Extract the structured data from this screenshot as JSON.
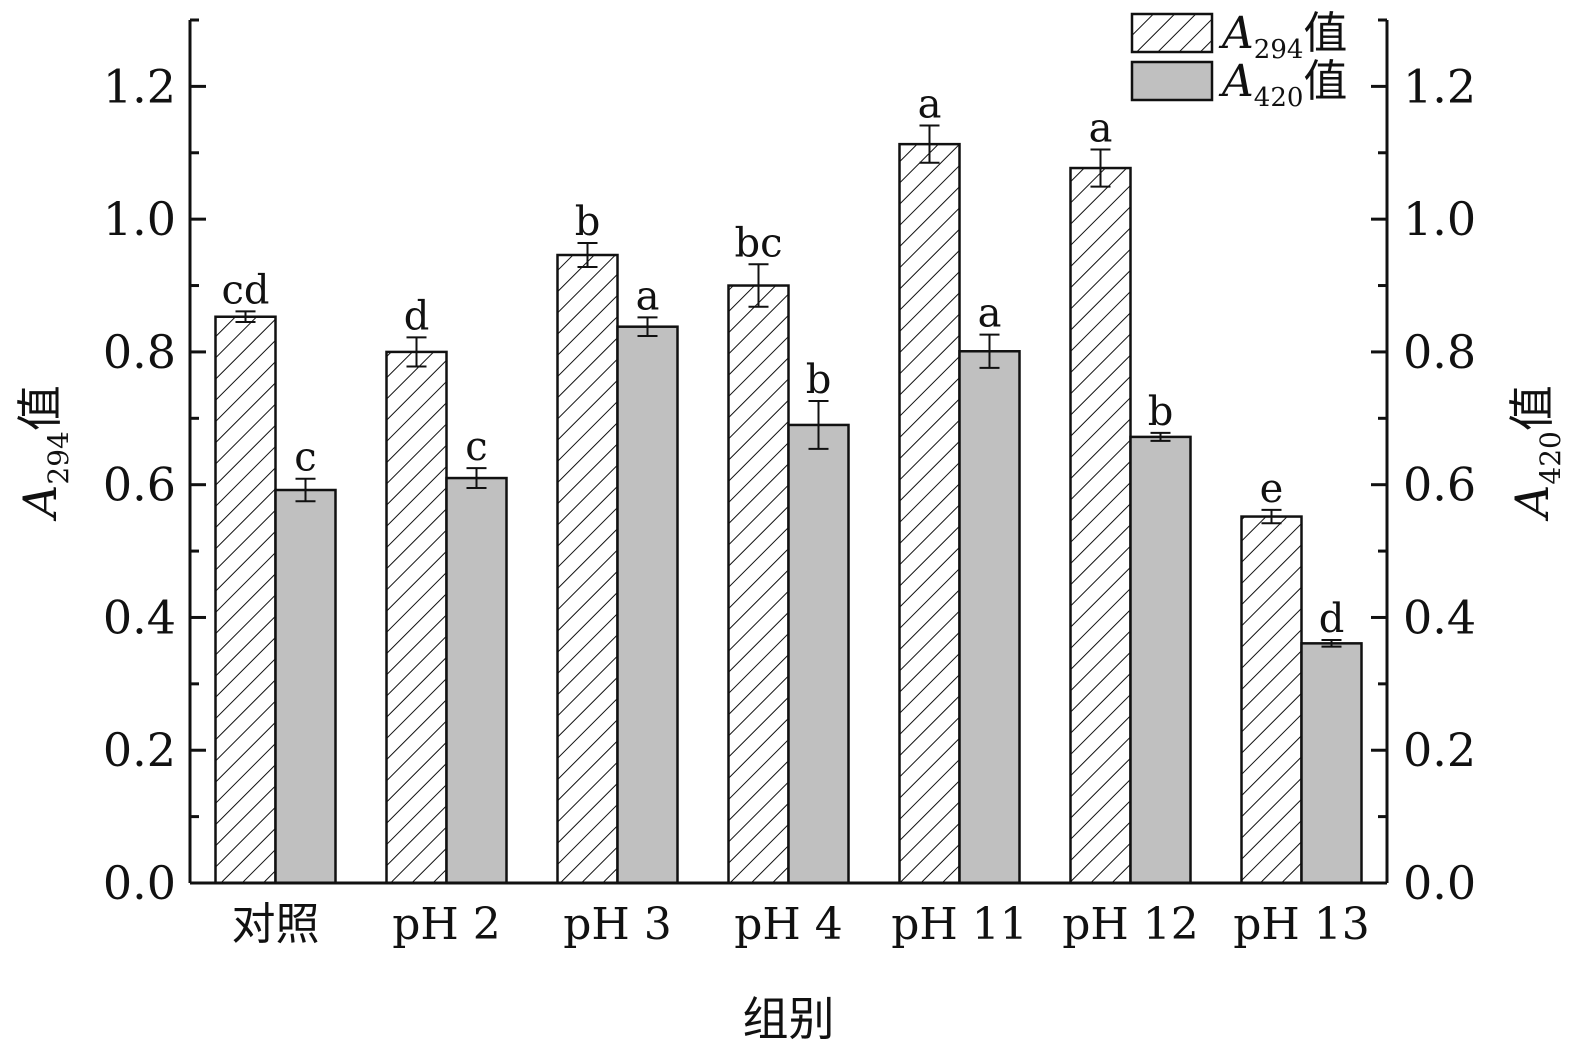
{
  "chart_data": {
    "type": "bar",
    "categories": [
      "对照",
      "pH 2",
      "pH 3",
      "pH 4",
      "pH 11",
      "pH 12",
      "pH 13"
    ],
    "series": [
      {
        "name_main": "A",
        "name_sub": "294",
        "name_suffix": "值",
        "axis": "left",
        "pattern": "hatch",
        "values": [
          0.853,
          0.8,
          0.946,
          0.9,
          1.113,
          1.077,
          0.552
        ],
        "errors": [
          0.008,
          0.022,
          0.018,
          0.032,
          0.028,
          0.028,
          0.01
        ],
        "labels": [
          "cd",
          "d",
          "b",
          "bc",
          "a",
          "a",
          "e"
        ]
      },
      {
        "name_main": "A",
        "name_sub": "420",
        "name_suffix": "值",
        "axis": "right",
        "pattern": "solid",
        "color": "#c0c0c0",
        "values": [
          0.592,
          0.61,
          0.838,
          0.69,
          0.801,
          0.672,
          0.361
        ],
        "errors": [
          0.017,
          0.015,
          0.014,
          0.036,
          0.025,
          0.006,
          0.005
        ],
        "labels": [
          "c",
          "c",
          "a",
          "b",
          "a",
          "b",
          "d"
        ]
      }
    ],
    "xlabel": "组别",
    "ylabel_left": {
      "main": "A",
      "sub": "294",
      "suffix": "值"
    },
    "ylabel_right": {
      "main": "A",
      "sub": "420",
      "suffix": "值"
    },
    "ylim": [
      0,
      1.3
    ],
    "yticks": [
      "0.0",
      "0.2",
      "0.4",
      "0.6",
      "0.8",
      "1.0",
      "1.2"
    ],
    "ytick_values": [
      0,
      0.2,
      0.4,
      0.6,
      0.8,
      1.0,
      1.2
    ],
    "grid": false,
    "legend_position": "top-right"
  }
}
